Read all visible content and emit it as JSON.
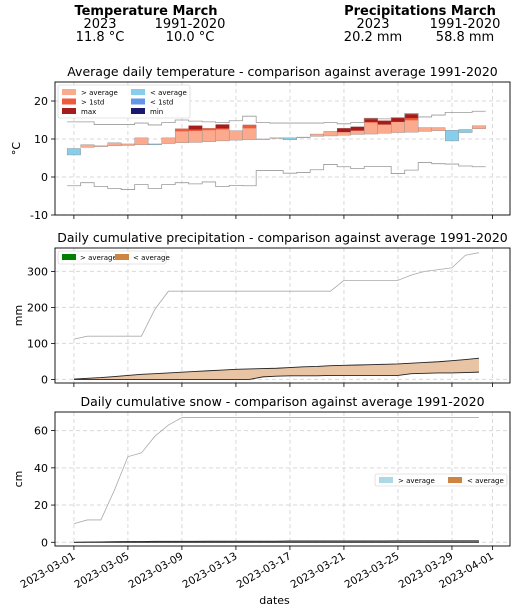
{
  "summary": {
    "temperature": {
      "title": "Temperature March",
      "col1_label": "2023",
      "col1_value": "11.8 °C",
      "col2_label": "1991-2020",
      "col2_value": "10.0 °C"
    },
    "precipitation": {
      "title": "Precipitations March",
      "col1_label": "2023",
      "col1_value": "20.2 mm",
      "col2_label": "1991-2020",
      "col2_value": "58.8 mm"
    }
  },
  "chart_data": [
    {
      "type": "area",
      "title": "Average daily temperature - comparison against average 1991-2020",
      "xlabel": "",
      "ylabel": "°C",
      "ylim": [
        -10,
        25
      ],
      "yticks": [
        -10,
        0,
        10,
        20
      ],
      "grid": true,
      "legend_position": "top-left",
      "legend": [
        {
          "label": "> average",
          "color": "#fcaa8e"
        },
        {
          "label": "< average",
          "color": "#87ceeb"
        },
        {
          "label": "> 1std",
          "color": "#f05a3c"
        },
        {
          "label": "< 1std",
          "color": "#6495ed"
        },
        {
          "label": "max",
          "color": "#a51c1c"
        },
        {
          "label": "min",
          "color": "#191970"
        }
      ],
      "x": [
        "2023-03-01",
        "2023-03-02",
        "2023-03-03",
        "2023-03-04",
        "2023-03-05",
        "2023-03-06",
        "2023-03-07",
        "2023-03-08",
        "2023-03-09",
        "2023-03-10",
        "2023-03-11",
        "2023-03-12",
        "2023-03-13",
        "2023-03-14",
        "2023-03-15",
        "2023-03-16",
        "2023-03-17",
        "2023-03-18",
        "2023-03-19",
        "2023-03-20",
        "2023-03-21",
        "2023-03-22",
        "2023-03-23",
        "2023-03-24",
        "2023-03-25",
        "2023-03-26",
        "2023-03-27",
        "2023-03-28",
        "2023-03-29",
        "2023-03-30",
        "2023-03-31"
      ],
      "series": [
        {
          "name": "2023",
          "values": [
            5.8,
            8.5,
            8.2,
            9.0,
            8.7,
            10.3,
            8.5,
            10.3,
            12.7,
            13.5,
            12.8,
            13.8,
            12.2,
            13.7,
            10.0,
            10.3,
            9.8,
            10.5,
            11.3,
            12.0,
            12.8,
            13.2,
            15.5,
            14.8,
            15.5,
            16.5,
            13.0,
            13.0,
            9.5,
            11.7,
            13.5
          ]
        },
        {
          "name": "1991-2020",
          "values": [
            7.5,
            7.8,
            8.0,
            8.2,
            8.3,
            8.5,
            8.7,
            8.8,
            9.0,
            9.1,
            9.3,
            9.5,
            9.7,
            9.8,
            10.0,
            10.2,
            10.3,
            10.5,
            10.7,
            10.8,
            11.0,
            11.2,
            11.3,
            11.5,
            11.7,
            11.8,
            12.0,
            12.2,
            12.3,
            12.5,
            12.7
          ]
        },
        {
          "name": "max",
          "values": [
            14.5,
            14.5,
            13.8,
            13.8,
            13.8,
            14.2,
            13.7,
            14.3,
            15.0,
            14.7,
            14.5,
            14.3,
            14.8,
            16.0,
            14.3,
            14.2,
            14.2,
            14.2,
            14.2,
            14.3,
            14.0,
            14.3,
            15.3,
            15.3,
            15.7,
            16.7,
            15.8,
            16.3,
            17.0,
            17.0,
            17.3
          ]
        },
        {
          "name": "min",
          "values": [
            -2.3,
            -1.5,
            -2.5,
            -3.0,
            -3.3,
            -2.0,
            -3.0,
            -2.0,
            -1.5,
            -1.8,
            -1.3,
            -2.5,
            -2.2,
            -2.3,
            1.7,
            1.7,
            1.0,
            1.2,
            1.9,
            3.3,
            2.7,
            2.2,
            2.8,
            2.8,
            0.9,
            1.8,
            3.8,
            3.5,
            3.4,
            2.9,
            2.7
          ]
        }
      ]
    },
    {
      "type": "area",
      "title": "Daily cumulative precipitation - comparison against average 1991-2020",
      "xlabel": "",
      "ylabel": "mm",
      "ylim": [
        -10,
        365
      ],
      "yticks": [
        0,
        100,
        200,
        300
      ],
      "grid": true,
      "legend_position": "top-left",
      "legend": [
        {
          "label": "> average",
          "color": "#008000"
        },
        {
          "label": "< average",
          "color": "#cd853f"
        }
      ],
      "x": [
        "2023-03-01",
        "2023-03-02",
        "2023-03-03",
        "2023-03-04",
        "2023-03-05",
        "2023-03-06",
        "2023-03-07",
        "2023-03-08",
        "2023-03-09",
        "2023-03-10",
        "2023-03-11",
        "2023-03-12",
        "2023-03-13",
        "2023-03-14",
        "2023-03-15",
        "2023-03-16",
        "2023-03-17",
        "2023-03-18",
        "2023-03-19",
        "2023-03-20",
        "2023-03-21",
        "2023-03-22",
        "2023-03-23",
        "2023-03-24",
        "2023-03-25",
        "2023-03-26",
        "2023-03-27",
        "2023-03-28",
        "2023-03-29",
        "2023-03-30",
        "2023-03-31"
      ],
      "series": [
        {
          "name": "2023",
          "values": [
            0,
            0,
            0,
            0,
            0,
            0,
            0,
            0,
            0,
            0,
            0,
            0,
            0,
            0,
            7,
            9,
            10,
            10,
            10,
            11,
            11,
            11,
            11,
            11,
            11,
            16,
            17,
            18,
            18,
            19,
            20.2
          ]
        },
        {
          "name": "1991-2020",
          "values": [
            1,
            3,
            5,
            8,
            11,
            14,
            16,
            18,
            20,
            22,
            24,
            26,
            28,
            29,
            30,
            31,
            33,
            35,
            36,
            38,
            39,
            40,
            41,
            42,
            43,
            45,
            47,
            49,
            52,
            55,
            58.8
          ]
        },
        {
          "name": "max",
          "values": [
            112,
            120,
            120,
            120,
            120,
            120,
            195,
            245,
            245,
            245,
            245,
            245,
            245,
            245,
            245,
            245,
            245,
            245,
            245,
            245,
            275,
            275,
            275,
            275,
            275,
            290,
            300,
            305,
            310,
            345,
            352
          ]
        },
        {
          "name": "min",
          "values": [
            0,
            0,
            0,
            0,
            0,
            0,
            0,
            0,
            0,
            0,
            0,
            0,
            0,
            0,
            0,
            0,
            0,
            0,
            0,
            0,
            0,
            0,
            0,
            0,
            0,
            0,
            0,
            0,
            0,
            0,
            0
          ]
        }
      ]
    },
    {
      "type": "area",
      "title": "Daily cumulative snow - comparison against average 1991-2020",
      "xlabel": "dates",
      "ylabel": "cm",
      "ylim": [
        -2,
        70
      ],
      "yticks": [
        0,
        20,
        40,
        60
      ],
      "grid": true,
      "legend_position": "center-right",
      "legend": [
        {
          "label": "> average",
          "color": "#add8e6"
        },
        {
          "label": "< average",
          "color": "#cd853f"
        }
      ],
      "xticks": [
        "2023-03-01",
        "2023-03-05",
        "2023-03-09",
        "2023-03-13",
        "2023-03-17",
        "2023-03-21",
        "2023-03-25",
        "2023-03-29",
        "2023-04-01"
      ],
      "x": [
        "2023-03-01",
        "2023-03-02",
        "2023-03-03",
        "2023-03-04",
        "2023-03-05",
        "2023-03-06",
        "2023-03-07",
        "2023-03-08",
        "2023-03-09",
        "2023-03-10",
        "2023-03-11",
        "2023-03-12",
        "2023-03-13",
        "2023-03-14",
        "2023-03-15",
        "2023-03-16",
        "2023-03-17",
        "2023-03-18",
        "2023-03-19",
        "2023-03-20",
        "2023-03-21",
        "2023-03-22",
        "2023-03-23",
        "2023-03-24",
        "2023-03-25",
        "2023-03-26",
        "2023-03-27",
        "2023-03-28",
        "2023-03-29",
        "2023-03-30",
        "2023-03-31"
      ],
      "series": [
        {
          "name": "2023",
          "values": [
            0,
            0,
            0,
            0,
            0,
            0,
            0,
            0,
            0,
            0,
            0,
            0,
            0,
            0,
            0,
            0,
            0,
            0,
            0,
            0,
            0,
            0,
            0,
            0,
            0,
            0,
            0,
            0,
            0,
            0,
            0
          ]
        },
        {
          "name": "1991-2020",
          "values": [
            0,
            0.1,
            0.2,
            0.3,
            0.4,
            0.4,
            0.5,
            0.5,
            0.5,
            0.5,
            0.6,
            0.6,
            0.6,
            0.6,
            0.6,
            0.6,
            0.7,
            0.7,
            0.7,
            0.7,
            0.7,
            0.7,
            0.7,
            0.7,
            0.8,
            0.8,
            0.8,
            0.8,
            0.8,
            0.8,
            0.8
          ]
        },
        {
          "name": "max",
          "values": [
            10,
            12,
            12,
            28,
            46,
            48,
            57,
            63,
            67,
            67,
            67,
            67,
            67,
            67,
            67,
            67,
            67,
            67,
            67,
            67,
            67,
            67,
            67,
            67,
            67,
            67,
            67,
            67,
            67,
            67,
            67
          ]
        },
        {
          "name": "min",
          "values": [
            0,
            0,
            0,
            0,
            0,
            0,
            0,
            0,
            0,
            0,
            0,
            0,
            0,
            0,
            0,
            0,
            0,
            0,
            0,
            0,
            0,
            0,
            0,
            0,
            0,
            0,
            0,
            0,
            0,
            0,
            0
          ]
        }
      ]
    }
  ]
}
